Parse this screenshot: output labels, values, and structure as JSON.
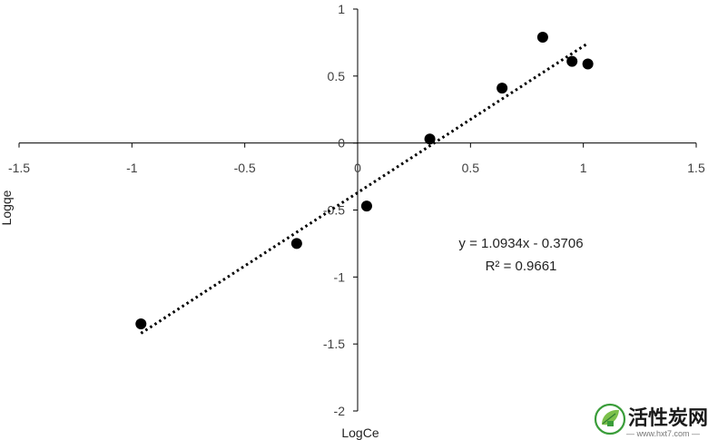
{
  "chart_data": {
    "type": "scatter",
    "title": "",
    "xlabel": "LogCe",
    "ylabel": "Logqe",
    "xlim": [
      -1.5,
      1.5
    ],
    "ylim": [
      -2,
      1
    ],
    "x_ticks": [
      "-1.5",
      "-1",
      "-0.5",
      "0",
      "0.5",
      "1",
      "1.5"
    ],
    "y_ticks": [
      "1",
      "0.5",
      "0",
      "-0.5",
      "-1",
      "-1.5",
      "-2"
    ],
    "grid": false,
    "points": [
      {
        "x": -0.96,
        "y": -1.35
      },
      {
        "x": -0.27,
        "y": -0.75
      },
      {
        "x": 0.04,
        "y": -0.47
      },
      {
        "x": 0.32,
        "y": 0.03
      },
      {
        "x": 0.64,
        "y": 0.41
      },
      {
        "x": 0.82,
        "y": 0.79
      },
      {
        "x": 0.95,
        "y": 0.61
      },
      {
        "x": 1.02,
        "y": 0.59
      }
    ],
    "trendline": {
      "slope": 1.0934,
      "intercept": -0.3706,
      "style": "dotted",
      "x_range": [
        -0.96,
        1.02
      ]
    },
    "equation": "y = 1.0934x - 0.3706",
    "r_squared": "R² = 0.9661",
    "colors": {
      "points": "#000000",
      "axis": "#000000",
      "trendline": "#000000"
    }
  },
  "watermark": {
    "text": "活性炭网",
    "url": "— www.hxt7.com —",
    "icon": "leaf-logo-icon",
    "color": "#3a9d3a"
  }
}
